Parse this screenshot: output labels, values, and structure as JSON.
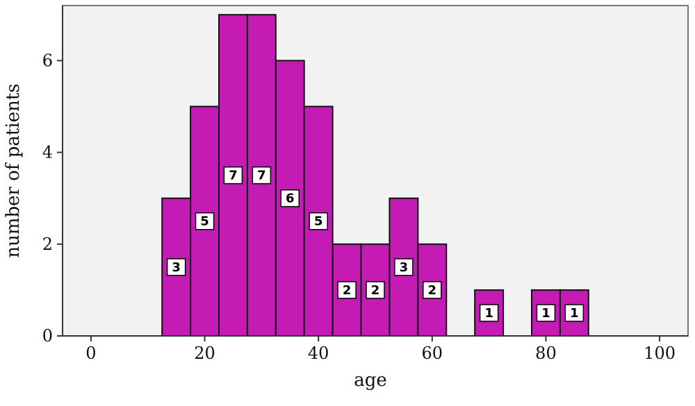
{
  "chart_data": {
    "type": "bar",
    "bin_width": 5,
    "bins": [
      {
        "x": 15,
        "value": 3
      },
      {
        "x": 20,
        "value": 5
      },
      {
        "x": 25,
        "value": 7
      },
      {
        "x": 30,
        "value": 7
      },
      {
        "x": 35,
        "value": 6
      },
      {
        "x": 40,
        "value": 5
      },
      {
        "x": 45,
        "value": 2
      },
      {
        "x": 50,
        "value": 2
      },
      {
        "x": 55,
        "value": 3
      },
      {
        "x": 60,
        "value": 2
      },
      {
        "x": 70,
        "value": 1
      },
      {
        "x": 80,
        "value": 1
      },
      {
        "x": 85,
        "value": 1
      }
    ],
    "xlabel": "age",
    "ylabel": "number of patients",
    "xlim": [
      -5,
      105
    ],
    "ylim": [
      0,
      7.2
    ],
    "xticks": [
      0,
      20,
      40,
      60,
      80,
      100
    ],
    "yticks": [
      0,
      2,
      4,
      6
    ],
    "grid": false,
    "colors": {
      "bar_fill": "#c31bb4",
      "bar_stroke": "#111111",
      "plot_background": "#f2f2f2",
      "frame": "#777777",
      "label_box": "#ffffff"
    }
  }
}
